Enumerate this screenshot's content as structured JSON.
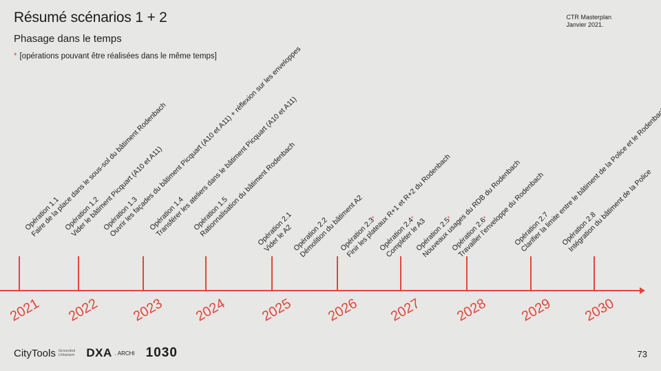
{
  "slide": {
    "title": "Résumé scénarios 1 + 2",
    "subtitle": "Phasage dans le temps",
    "note_star": "*",
    "note": "[opérations pouvant être réalisées dans le même temps]",
    "meta_line1": "CTR Masterplan",
    "meta_line2": "Janvier 2021.",
    "page_number": "73"
  },
  "footer": {
    "citytools": "CityTools",
    "grounded_line1": "Grounded",
    "grounded_line2": "Urbanism",
    "dxa": "DXA",
    "archi": ". ARCHI",
    "logo_1030": "1030"
  },
  "colors": {
    "accent": "#e2453a",
    "background": "#e7e7e5",
    "text": "#1c1c1c"
  },
  "years": [
    "2021",
    "2022",
    "2023",
    "2024",
    "2025",
    "2026",
    "2027",
    "2028",
    "2029",
    "2030"
  ],
  "operations": [
    {
      "id": "Opération 1.1",
      "desc": "Faire de la place dans le sous-sol du bâtiment Rodenbach",
      "star": false
    },
    {
      "id": "Opération 1.2",
      "desc": "Vider le bâtiment Picquart (A10 et A11)",
      "star": false
    },
    {
      "id": "Opération 1.3",
      "desc": "Ouvrir les façades du bâtiment Picquart (A10 et A11) + réflexion sur les enveloppes",
      "star": false
    },
    {
      "id": "Opération 1.4",
      "desc": "Transférer les ateliers dans le bâtiment Picquart (A10 et A11)",
      "star": false
    },
    {
      "id": "Opération 1.5",
      "desc": "Rationnalisation du bâtiment Rodenbach",
      "star": false
    },
    {
      "id": "Opération 2.1",
      "desc": "Vider le A2",
      "star": false
    },
    {
      "id": "Opération 2.2",
      "desc": "Démolition du bâtiment A2",
      "star": false
    },
    {
      "id": "Opération 2.3",
      "desc": "Finir les plateaux R+1 et R+2 du Rodenbach",
      "star": true
    },
    {
      "id": "Opération 2.4",
      "desc": "Compléter le A3",
      "star": true
    },
    {
      "id": "Opération 2.5",
      "desc": "Nouveaux usages du RDB du Rodenbach",
      "star": true
    },
    {
      "id": "Opération 2.6",
      "desc": "Travailler l'enveloppe du Rodenbach",
      "star": true
    },
    {
      "id": "Opération 2.7",
      "desc": "Clarifier la limite entre le bâtiment de la Police et le Rodenbach",
      "star": false
    },
    {
      "id": "Opération 2.8",
      "desc": "Intégration du bâtiment de la Police",
      "star": false
    }
  ]
}
